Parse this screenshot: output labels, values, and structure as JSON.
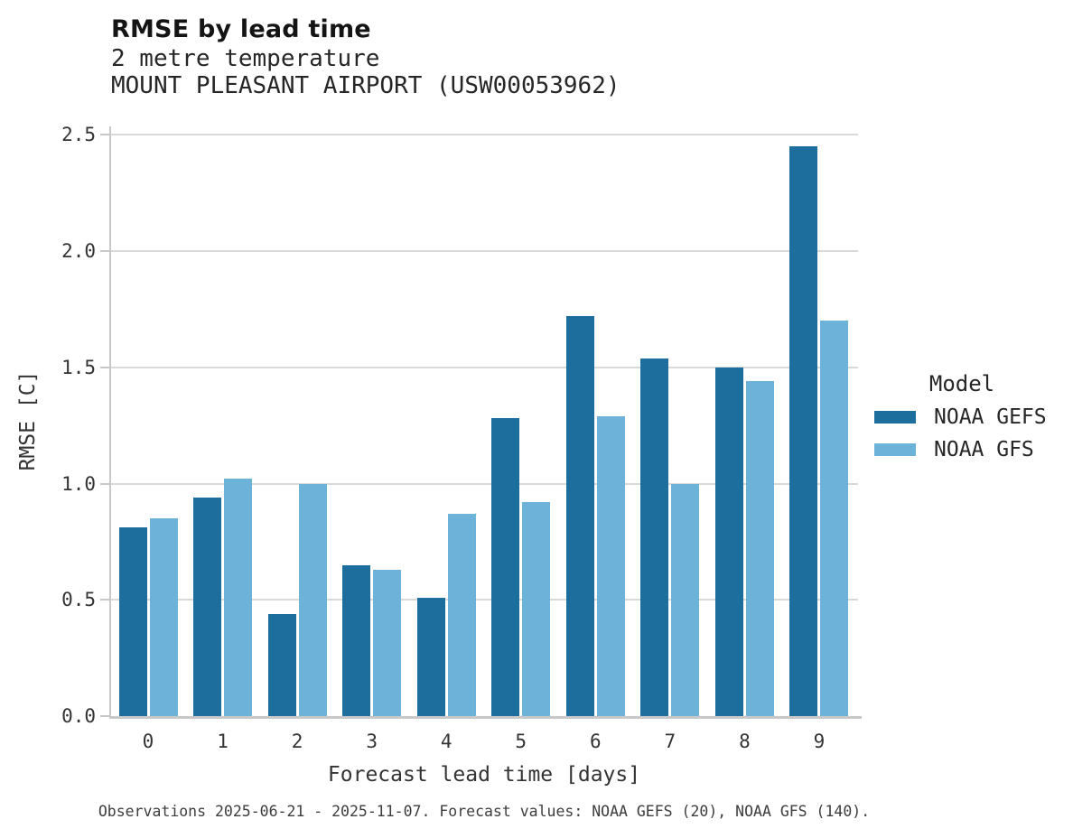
{
  "header": {
    "title": "RMSE by lead time",
    "subtitle_line1": "2 metre temperature",
    "subtitle_line2": "MOUNT PLEASANT AIRPORT (USW00053962)"
  },
  "legend": {
    "title": "Model",
    "entries": [
      {
        "label": "NOAA GEFS",
        "color": "#1d6e9d"
      },
      {
        "label": "NOAA GFS",
        "color": "#6db2d9"
      }
    ]
  },
  "footer": {
    "text": "Observations 2025-06-21 - 2025-11-07. Forecast values: NOAA GEFS (20), NOAA GFS (140)."
  },
  "chart_data": {
    "type": "bar",
    "title": "RMSE by lead time",
    "subtitle": [
      "2 metre temperature",
      "MOUNT PLEASANT AIRPORT (USW00053962)"
    ],
    "xlabel": "Forecast lead time [days]",
    "ylabel": "RMSE [C]",
    "categories": [
      "0",
      "1",
      "2",
      "3",
      "4",
      "5",
      "6",
      "7",
      "8",
      "9"
    ],
    "series": [
      {
        "name": "NOAA GEFS",
        "color": "#1d6e9d",
        "values": [
          0.81,
          0.94,
          0.44,
          0.65,
          0.51,
          1.28,
          1.72,
          1.54,
          1.5,
          2.45
        ]
      },
      {
        "name": "NOAA GFS",
        "color": "#6db2d9",
        "values": [
          0.85,
          1.02,
          1.0,
          0.63,
          0.87,
          0.92,
          1.29,
          1.0,
          1.44,
          1.7
        ]
      }
    ],
    "ylim": [
      0,
      2.5
    ],
    "yticks": [
      0.0,
      0.5,
      1.0,
      1.5,
      2.0,
      2.5
    ],
    "ytick_labels": [
      "0.0",
      "0.5",
      "1.0",
      "1.5",
      "2.0",
      "2.5"
    ],
    "grid": "horizontal gridlines only, light gray",
    "legend_position": "center-right outside plot",
    "legend_title": "Model",
    "annotation": "Observations 2025-06-21 - 2025-11-07. Forecast values: NOAA GEFS (20), NOAA GFS (140)."
  },
  "colors": {
    "background": "#ffffff",
    "grid": "#d9d9d9",
    "spine": "#c8c8c8",
    "title_text": "#141414",
    "subtitle_text": "#262626",
    "tick_text": "#333333",
    "footer_text": "#3d3d3d"
  }
}
